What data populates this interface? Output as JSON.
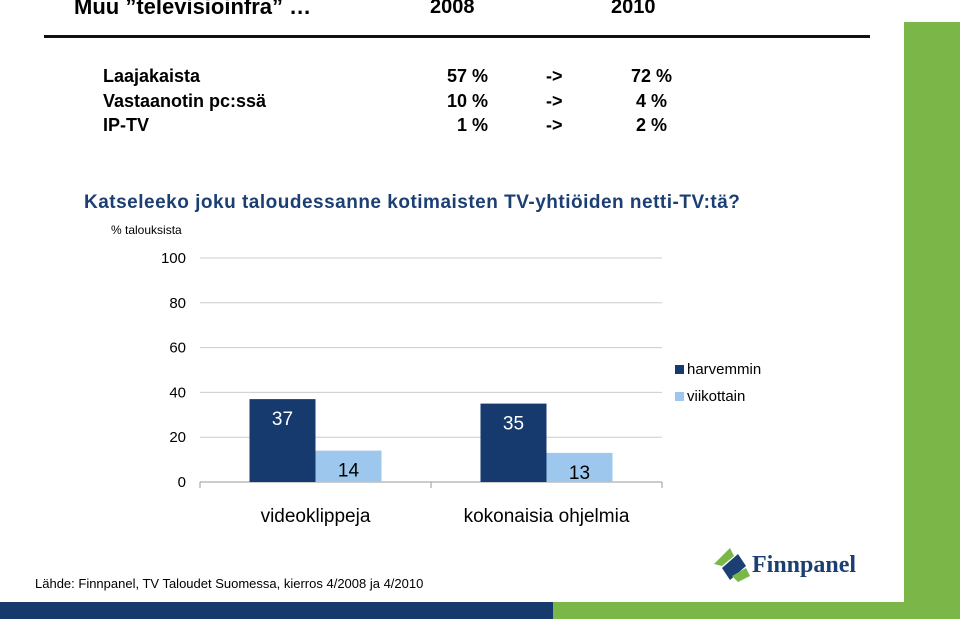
{
  "header": {
    "title": "Muu ”televisioinfra” …",
    "year_a": "2008",
    "year_b": "2010"
  },
  "stats": [
    {
      "label": "Laajakaista",
      "a": "57 %",
      "arrow": "->",
      "b": "72 %"
    },
    {
      "label": "Vastaanotin pc:ssä",
      "a": "10 %",
      "arrow": "->",
      "b": "4 %"
    },
    {
      "label": "IP-TV",
      "a": "1 %",
      "arrow": "->",
      "b": "2 %"
    }
  ],
  "question": "Katseleeko joku taloudessanne kotimaisten TV-yhtiöiden netti-TV:tä?",
  "unit_label": "%  talouksista",
  "source": "Lähde: Finnpanel, TV Taloudet  Suomessa, kierros 4/2008 ja 4/2010",
  "logo": {
    "text": "Finnpanel"
  },
  "colors": {
    "series_dark": "#163a6e",
    "series_light": "#9ec7ee",
    "accent_green": "#7ab648"
  },
  "chart_data": {
    "type": "bar",
    "categories": [
      "videoklippeja",
      "kokonaisia ohjelmia"
    ],
    "series": [
      {
        "name": "harvemmin",
        "values": [
          37,
          35
        ],
        "color": "#163a6e"
      },
      {
        "name": "viikottain",
        "values": [
          14,
          13
        ],
        "color": "#9ec7ee"
      }
    ],
    "ylim": [
      0,
      100
    ],
    "yticks": [
      0,
      20,
      40,
      60,
      80,
      100
    ],
    "grid": true,
    "legend": "right"
  }
}
